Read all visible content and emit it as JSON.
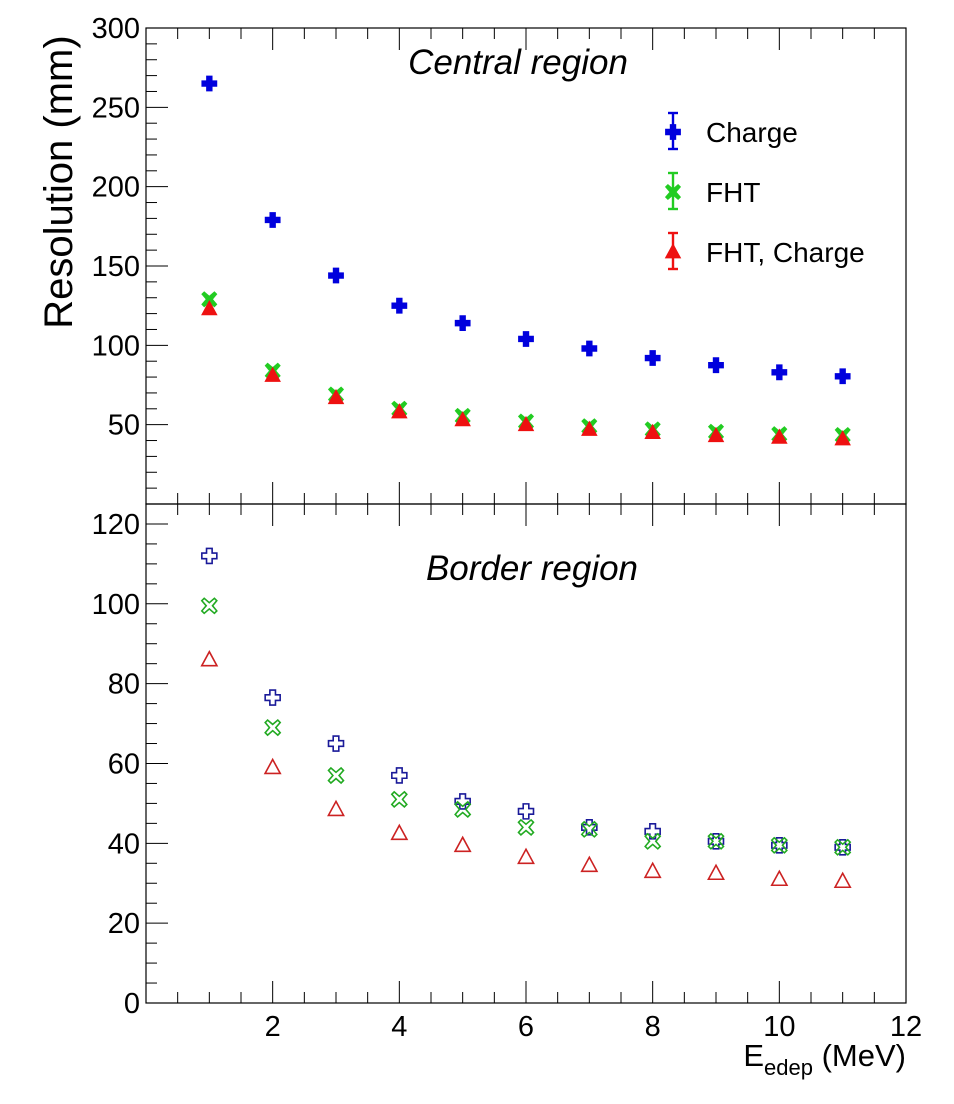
{
  "chart_data": [
    {
      "type": "scatter",
      "title": "Central region",
      "xlabel": "",
      "ylabel": "Resolution (mm)",
      "xlim": [
        0,
        12
      ],
      "ylim": [
        0,
        300
      ],
      "yticks": [
        "50",
        "100",
        "150",
        "200",
        "250",
        "300"
      ],
      "legend_position": "top-right",
      "series": [
        {
          "name": "Charge",
          "color": "#0000dd",
          "marker": "plus-filled",
          "x": [
            1,
            2,
            3,
            4,
            5,
            6,
            7,
            8,
            9,
            10,
            11
          ],
          "y": [
            265,
            179,
            144,
            125,
            114,
            104,
            98,
            92,
            87.5,
            83,
            80.5
          ]
        },
        {
          "name": "FHT",
          "color": "#22cc22",
          "marker": "x-filled",
          "x": [
            1,
            2,
            3,
            4,
            5,
            6,
            7,
            8,
            9,
            10,
            11
          ],
          "y": [
            129,
            84,
            69,
            60,
            55.5,
            52,
            49,
            47,
            45.5,
            44,
            43.5
          ]
        },
        {
          "name": "FHT, Charge",
          "color": "#ee1111",
          "marker": "triangle-filled",
          "x": [
            1,
            2,
            3,
            4,
            5,
            6,
            7,
            8,
            9,
            10,
            11
          ],
          "y": [
            123,
            81,
            67,
            58,
            53,
            50,
            47,
            45,
            43,
            42,
            41
          ]
        }
      ]
    },
    {
      "type": "scatter",
      "title": "Border region",
      "xlabel": "E_edep (MeV)",
      "xlabel_main": "E",
      "xlabel_sub": "edep",
      "xlabel_unit": "(MeV)",
      "ylabel": "Resolution (mm)",
      "xlim": [
        0,
        12
      ],
      "ylim": [
        0,
        125
      ],
      "xticks": [
        "2",
        "4",
        "6",
        "8",
        "10",
        "12"
      ],
      "yticks": [
        "0",
        "20",
        "40",
        "60",
        "80",
        "100",
        "120"
      ],
      "series": [
        {
          "name": "Charge",
          "color": "#1a1a99",
          "marker": "plus-open",
          "x": [
            1,
            2,
            3,
            4,
            5,
            6,
            7,
            8,
            9,
            10,
            11
          ],
          "y": [
            112,
            76.5,
            65,
            57,
            50.5,
            48,
            44,
            43,
            40.5,
            39.5,
            39
          ]
        },
        {
          "name": "FHT",
          "color": "#22aa22",
          "marker": "x-open",
          "x": [
            1,
            2,
            3,
            4,
            5,
            6,
            7,
            8,
            9,
            10,
            11
          ],
          "y": [
            99.5,
            69,
            57,
            51,
            48.5,
            44,
            43.5,
            40.5,
            40.5,
            39.5,
            39
          ]
        },
        {
          "name": "FHT, Charge",
          "color": "#cc2222",
          "marker": "triangle-open",
          "x": [
            1,
            2,
            3,
            4,
            5,
            6,
            7,
            8,
            9,
            10,
            11
          ],
          "y": [
            86,
            59,
            48.5,
            42.5,
            39.5,
            36.5,
            34.5,
            33,
            32.5,
            31,
            30.5
          ]
        }
      ]
    }
  ]
}
